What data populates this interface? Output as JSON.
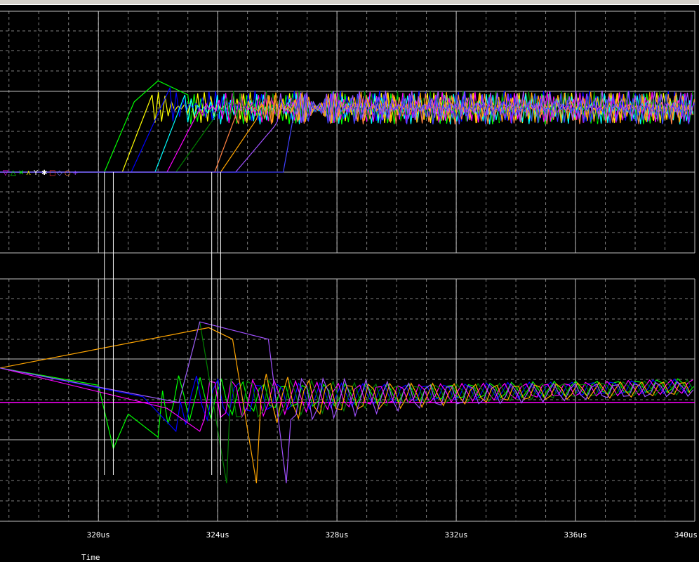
{
  "chart_data": [
    {
      "type": "line",
      "panel": "top",
      "xlabel": "Time",
      "xlim_us": [
        316.7,
        340
      ],
      "x_ticks": [
        "320us",
        "324us",
        "328us",
        "332us",
        "336us",
        "340us"
      ],
      "grid": true,
      "marker_symbols": [
        "▽",
        "△",
        "✕",
        "⋏",
        "Y",
        "✱",
        "□",
        "◇",
        "○",
        "+"
      ],
      "series": [
        {
          "color": "#00ff00",
          "values": [
            {
              "x_us": 316.7,
              "y": 0
            },
            {
              "x_us": 320.2,
              "y": 0
            },
            {
              "x_us": 321.2,
              "y": 1.0
            },
            {
              "x_us": 322.0,
              "y": 1.3
            },
            {
              "x_us": 323.0,
              "y": 1.1
            },
            {
              "x_us": 340,
              "y": 1.0
            }
          ]
        },
        {
          "color": "#ffff00",
          "values": [
            {
              "x_us": 316.7,
              "y": 0
            },
            {
              "x_us": 320.8,
              "y": 0
            },
            {
              "x_us": 321.8,
              "y": 1.1
            },
            {
              "x_us": 340,
              "y": 1.0
            }
          ]
        },
        {
          "color": "#0000ff",
          "values": [
            {
              "x_us": 316.7,
              "y": 0
            },
            {
              "x_us": 321.1,
              "y": 0
            },
            {
              "x_us": 322.4,
              "y": 1.2
            },
            {
              "x_us": 340,
              "y": 1.0
            }
          ]
        },
        {
          "color": "#00ffff",
          "values": [
            {
              "x_us": 316.7,
              "y": 0
            },
            {
              "x_us": 321.9,
              "y": 0
            },
            {
              "x_us": 322.9,
              "y": 1.1
            },
            {
              "x_us": 340,
              "y": 1.0
            }
          ]
        },
        {
          "color": "#ff00ff",
          "values": [
            {
              "x_us": 316.7,
              "y": 0
            },
            {
              "x_us": 322.3,
              "y": 0
            },
            {
              "x_us": 323.4,
              "y": 0.9
            },
            {
              "x_us": 340,
              "y": 1.0
            }
          ]
        },
        {
          "color": "#008000",
          "values": [
            {
              "x_us": 316.7,
              "y": 0
            },
            {
              "x_us": 322.6,
              "y": 0
            },
            {
              "x_us": 324.1,
              "y": 0.9
            },
            {
              "x_us": 340,
              "y": 1.0
            }
          ]
        },
        {
          "color": "#ff8040",
          "values": [
            {
              "x_us": 316.7,
              "y": 0
            },
            {
              "x_us": 323.9,
              "y": 0
            },
            {
              "x_us": 324.6,
              "y": 0.8
            },
            {
              "x_us": 340,
              "y": 1.0
            }
          ]
        },
        {
          "color": "#ffa500",
          "values": [
            {
              "x_us": 316.7,
              "y": 0
            },
            {
              "x_us": 324.1,
              "y": 0
            },
            {
              "x_us": 325.3,
              "y": 0.75
            },
            {
              "x_us": 340,
              "y": 1.0
            }
          ]
        },
        {
          "color": "#a050ff",
          "values": [
            {
              "x_us": 316.7,
              "y": 0
            },
            {
              "x_us": 324.6,
              "y": 0
            },
            {
              "x_us": 325.9,
              "y": 0.65
            },
            {
              "x_us": 340,
              "y": 1.0
            }
          ]
        },
        {
          "color": "#4040ff",
          "values": [
            {
              "x_us": 316.7,
              "y": 0
            },
            {
              "x_us": 326.2,
              "y": 0
            },
            {
              "x_us": 326.5,
              "y": 0.7
            },
            {
              "x_us": 340,
              "y": 1.0
            }
          ]
        }
      ]
    },
    {
      "type": "line",
      "panel": "bottom",
      "xlabel": "Time",
      "xlim_us": [
        316.7,
        340
      ],
      "x_ticks": [
        "320us",
        "324us",
        "328us",
        "332us",
        "336us",
        "340us"
      ],
      "grid": true,
      "series": [
        {
          "color": "#00ff00",
          "values": [
            {
              "x_us": 316.7,
              "y": 0.6
            },
            {
              "x_us": 320.0,
              "y": 0.3
            },
            {
              "x_us": 320.5,
              "y": -0.8
            },
            {
              "x_us": 321.0,
              "y": -0.2
            },
            {
              "x_us": 322.0,
              "y": -0.6
            },
            {
              "x_us": 340,
              "y": 0.35
            }
          ]
        },
        {
          "color": "#0000ff",
          "values": [
            {
              "x_us": 316.7,
              "y": 0.6
            },
            {
              "x_us": 321.5,
              "y": 0.1
            },
            {
              "x_us": 322.6,
              "y": -0.5
            },
            {
              "x_us": 340,
              "y": 0.3
            }
          ]
        },
        {
          "color": "#ff00ff",
          "values": [
            {
              "x_us": 316.7,
              "y": 0.6
            },
            {
              "x_us": 322.3,
              "y": -0.1
            },
            {
              "x_us": 323.4,
              "y": -0.5
            },
            {
              "x_us": 340,
              "y": 0.25
            }
          ]
        },
        {
          "color": "#008000",
          "values": [
            {
              "x_us": 316.7,
              "y": 0.6
            },
            {
              "x_us": 322.7,
              "y": 0
            },
            {
              "x_us": 323.4,
              "y": 1.4
            },
            {
              "x_us": 324.3,
              "y": -1.4
            },
            {
              "x_us": 340,
              "y": 0.3
            }
          ]
        },
        {
          "color": "#ffa500",
          "values": [
            {
              "x_us": 316.7,
              "y": 0.6
            },
            {
              "x_us": 323.7,
              "y": 1.3
            },
            {
              "x_us": 324.5,
              "y": 1.1
            },
            {
              "x_us": 325.3,
              "y": -1.4
            },
            {
              "x_us": 340,
              "y": 0.3
            }
          ]
        },
        {
          "color": "#a050ff",
          "values": [
            {
              "x_us": 316.7,
              "y": 0.6
            },
            {
              "x_us": 322.7,
              "y": 0.0
            },
            {
              "x_us": 323.4,
              "y": 1.4
            },
            {
              "x_us": 325.7,
              "y": 1.1
            },
            {
              "x_us": 326.3,
              "y": -1.4
            },
            {
              "x_us": 340,
              "y": 0.3
            }
          ]
        }
      ]
    }
  ],
  "colors": {
    "background": "#000000",
    "grid_major": "#c0c0c0",
    "grid_minor": "#808080",
    "cursor": "#ffffff",
    "reference_line": "#ff00ff"
  }
}
